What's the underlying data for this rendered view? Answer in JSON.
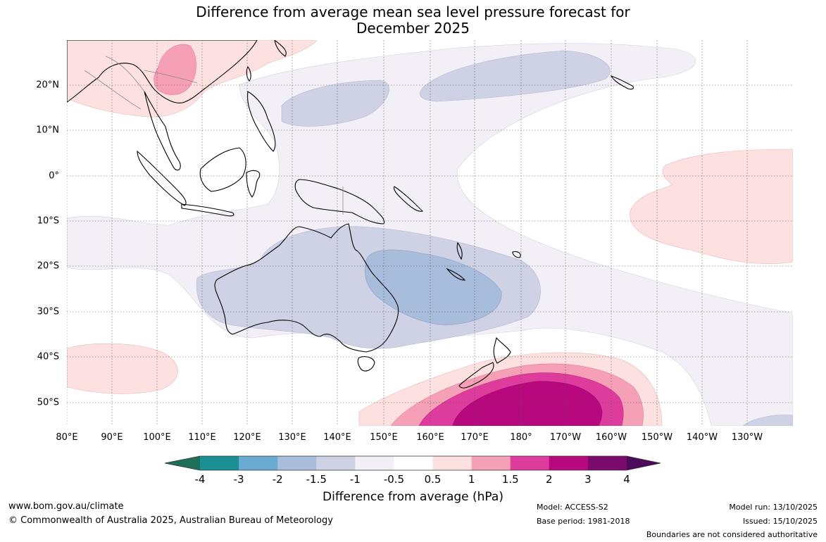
{
  "title_line1": "Difference from average mean sea level pressure forecast for",
  "title_line2": "December 2025",
  "lon_labels": [
    "80°E",
    "90°E",
    "100°E",
    "110°E",
    "120°E",
    "130°E",
    "140°E",
    "150°E",
    "160°E",
    "170°E",
    "180°",
    "170°W",
    "160°W",
    "150°W",
    "140°W",
    "130°W"
  ],
  "lat_labels": [
    "20°N",
    "10°N",
    "0°",
    "10°S",
    "20°S",
    "30°S",
    "40°S",
    "50°S"
  ],
  "colorbar": {
    "title": "Difference from average (hPa)",
    "tick_labels": [
      "-4",
      "-3",
      "-2",
      "-1.5",
      "-1",
      "-0.5",
      "0.5",
      "1",
      "1.5",
      "2",
      "3",
      "4"
    ],
    "colors": {
      "below_-4": "#1e6e5a",
      "-4_-3": "#1a8f94",
      "-3_-2": "#6aabd4",
      "-2_-1.5": "#a8bcdb",
      "-1.5_-1": "#cfd1e5",
      "-1_-0.5": "#f3eff7",
      "-0.5_0.5": "#ffffff",
      "0.5_1": "#fde0e0",
      "1_1.5": "#f6a0b8",
      "1.5_2": "#de3c9c",
      "2_3": "#b8087e",
      "3_4": "#7a0a6e",
      "above_4": "#4b0a5a"
    }
  },
  "footer": {
    "website": "www.bom.gov.au/climate",
    "copyright": "© Commonwealth of Australia 2025, Australian Bureau of Meteorology",
    "model": "Model: ACCESS-S2",
    "base_period": "Base period: 1981-2018",
    "model_run": "Model run: 13/10/2025",
    "issued": "Issued: 15/10/2025",
    "disclaimer": "Boundaries are not considered authoritative"
  }
}
